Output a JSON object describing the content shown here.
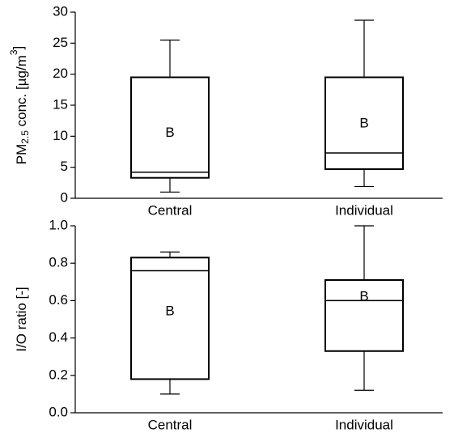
{
  "chart_data": [
    {
      "type": "box",
      "ylabel": {
        "base": "PM",
        "sub": "2.5",
        "mid": " conc. [µg/m",
        "sup": "3",
        "end": "]"
      },
      "categories": [
        "Central",
        "Individual"
      ],
      "boxes": [
        {
          "whislo": 1.0,
          "q1": 3.3,
          "med": 4.2,
          "q3": 19.5,
          "whishi": 25.5
        },
        {
          "whislo": 1.9,
          "q1": 4.7,
          "med": 7.3,
          "q3": 19.5,
          "whishi": 28.7
        }
      ],
      "annotations": [
        {
          "text": "B",
          "y": 10.5
        },
        {
          "text": "B",
          "y": 12.0
        }
      ],
      "ylim": [
        0,
        30
      ],
      "yticks": [
        0,
        5,
        10,
        15,
        20,
        25,
        30
      ]
    },
    {
      "type": "box",
      "ylabel": {
        "base": "I/O ratio [-]"
      },
      "categories": [
        "Central",
        "Individual"
      ],
      "boxes": [
        {
          "whislo": 0.1,
          "q1": 0.18,
          "med": 0.76,
          "q3": 0.83,
          "whishi": 0.86
        },
        {
          "whislo": 0.12,
          "q1": 0.33,
          "med": 0.6,
          "q3": 0.71,
          "whishi": 1.0
        }
      ],
      "annotations": [
        {
          "text": "B",
          "y": 0.54
        },
        {
          "text": "B",
          "y": 0.62
        }
      ],
      "ylim": [
        0,
        1
      ],
      "yticks": [
        {
          "value": 0,
          "label": "0.0"
        },
        0.2,
        0.4,
        0.6,
        0.8,
        {
          "value": 1,
          "label": "1.0"
        }
      ]
    }
  ]
}
